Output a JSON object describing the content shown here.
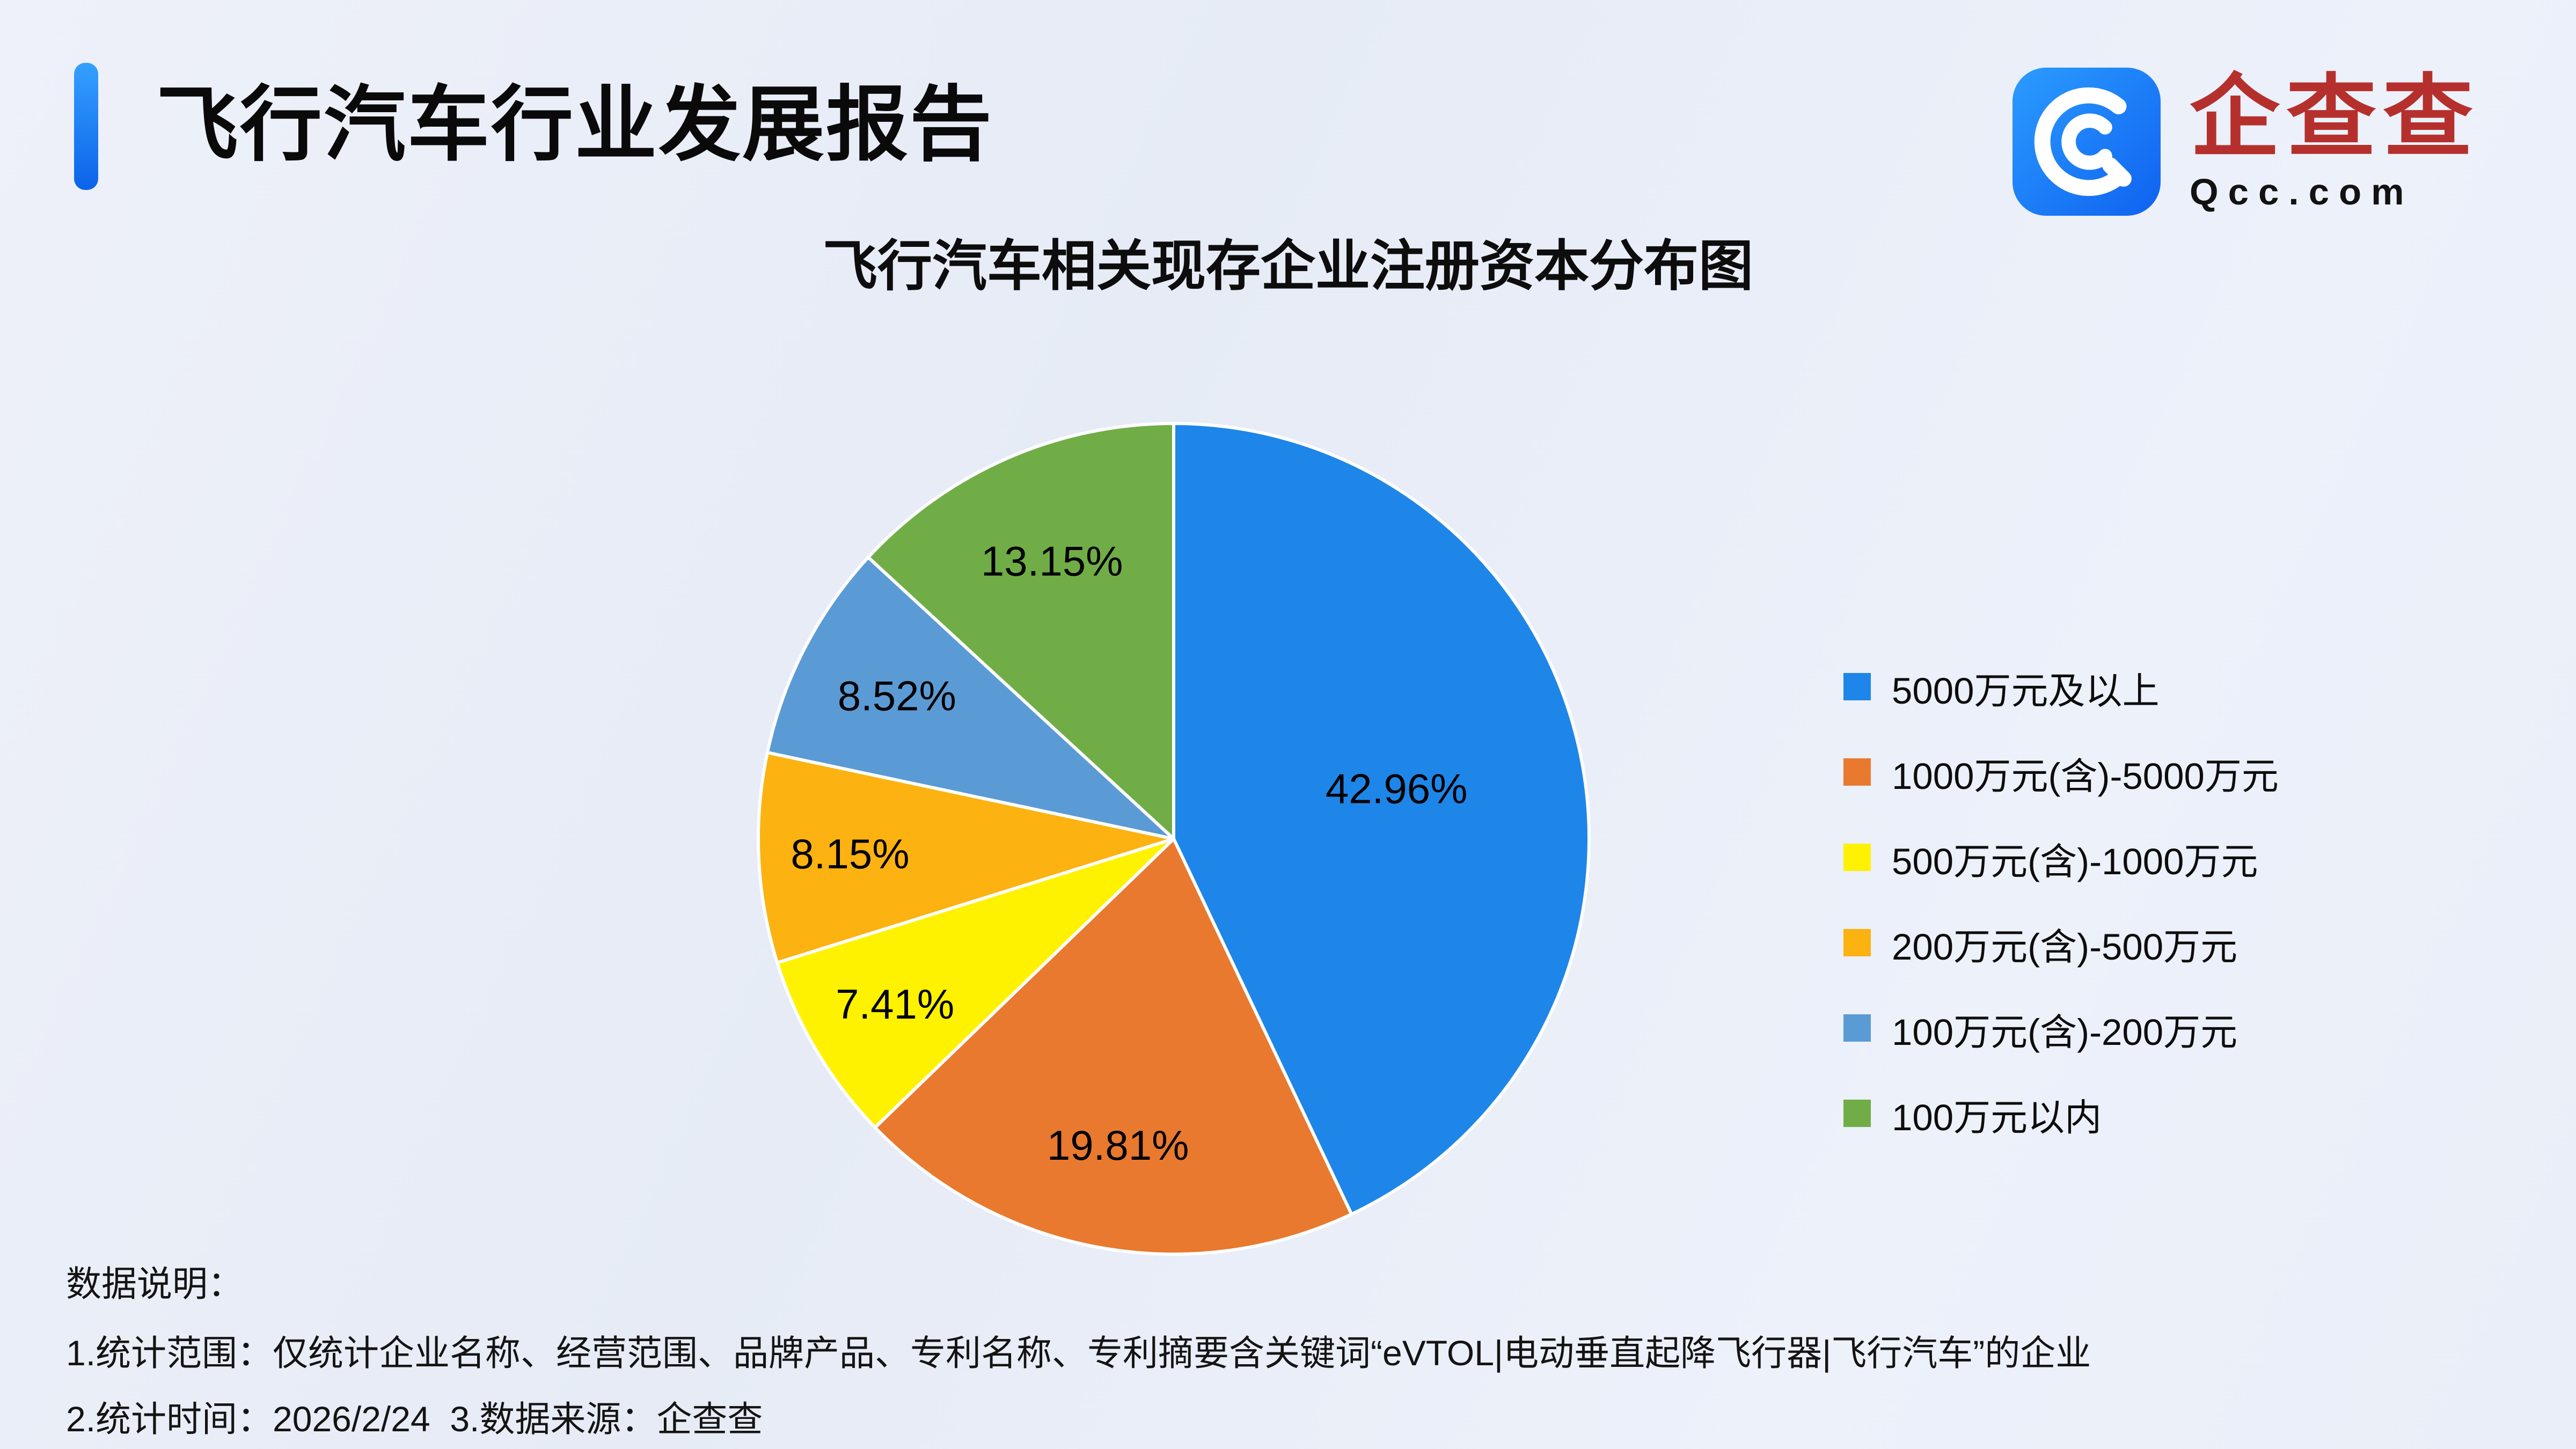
{
  "header": {
    "title": "飞行汽车行业发展报告",
    "logo": {
      "brand": "企查查",
      "domain": "Qcc.com",
      "icon": "qcc-swirl-c-icon",
      "icon_color": "#1677ff",
      "brand_color": "#b5302c"
    }
  },
  "chart_data": {
    "type": "pie",
    "title": "飞行汽车相关现存企业注册资本分布图",
    "slices": [
      {
        "label": "5000万元及以上",
        "value": 42.96,
        "color": "#1e86e8"
      },
      {
        "label": "1000万元(含)-5000万元",
        "value": 19.81,
        "color": "#e8792e"
      },
      {
        "label": "500万元(含)-1000万元",
        "value": 7.41,
        "color": "#fef200"
      },
      {
        "label": "200万元(含)-500万元",
        "value": 8.15,
        "color": "#fcb211"
      },
      {
        "label": "100万元(含)-200万元",
        "value": 8.52,
        "color": "#5b9bd5"
      },
      {
        "label": "100万元以内",
        "value": 13.15,
        "color": "#70ad47"
      }
    ],
    "value_suffix": "%",
    "start_angle_deg": 0,
    "direction": "clockwise",
    "legend_position": "right",
    "labels_inside": true,
    "label_radius": [
      0.55,
      0.75,
      0.78,
      0.78,
      0.75,
      0.73
    ]
  },
  "footnotes": {
    "heading": "数据说明：",
    "line1": "1.统计范围：仅统计企业名称、经营范围、品牌产品、专利名称、专利摘要含关键词“eVTOL|电动垂直起降飞行器|飞行汽车”的企业",
    "line2": "2.统计时间：2026/2/24  3.数据来源：企查查"
  }
}
